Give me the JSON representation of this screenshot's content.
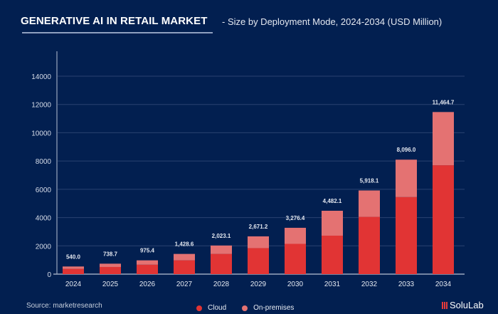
{
  "header": {
    "title": "GENERATIVE AI IN RETAIL MARKET",
    "subtitle": "-  Size by Deployment Mode, 2024-2034 (USD Million)"
  },
  "footer": {
    "source": "Source: marketresearch",
    "brand": "SoluLab"
  },
  "colors": {
    "background": "#021f50",
    "cloud": "#e13434",
    "on_premises": "#e47272",
    "axis": "#9aa6bd",
    "grid": "#2a4270"
  },
  "chart_data": {
    "type": "bar",
    "stacked": true,
    "title": "GENERATIVE AI IN RETAIL MARKET",
    "subtitle": "Size by Deployment Mode, 2024-2034 (USD Million)",
    "xlabel": "",
    "ylabel": "",
    "ylim": [
      0,
      14000
    ],
    "yticks": [
      0,
      2000,
      4000,
      6000,
      8000,
      10000,
      12000,
      14000
    ],
    "grid": true,
    "legend_position": "bottom",
    "categories": [
      "2024",
      "2025",
      "2026",
      "2027",
      "2028",
      "2029",
      "2030",
      "2031",
      "2032",
      "2033",
      "2034"
    ],
    "series": [
      {
        "name": "Cloud",
        "values": [
          370,
          505,
          665,
          975,
          1430,
          1840,
          2140,
          2720,
          4050,
          5450,
          7700
        ]
      },
      {
        "name": "On-premises",
        "values": [
          170.0,
          233.7,
          310.4,
          453.6,
          593.1,
          831.2,
          1136.4,
          1762.1,
          1868.1,
          2646.0,
          3764.7
        ]
      }
    ],
    "totals": [
      540.0,
      738.7,
      975.4,
      1428.6,
      2023.1,
      2671.2,
      3276.4,
      4482.1,
      5918.1,
      8096.0,
      11464.7
    ],
    "total_labels": [
      "540.0",
      "738.7",
      "975.4",
      "1,428.6",
      "2,023.1",
      "2,671.2",
      "3,276.4",
      "4,482.1",
      "5,918.1",
      "8,096.0",
      "11,464.7"
    ]
  }
}
